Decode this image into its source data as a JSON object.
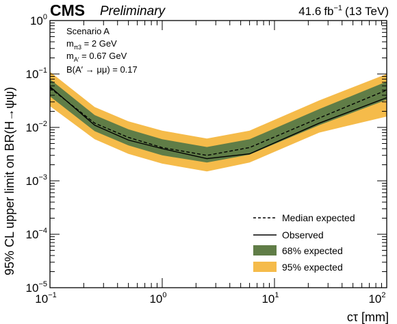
{
  "header": {
    "experiment": "CMS",
    "status": "Preliminary",
    "lumi_value": "41.6",
    "lumi_unit": "fb",
    "lumi_exp": "−1",
    "energy": "(13 TeV)"
  },
  "annotations": {
    "scenario": "Scenario A",
    "mass_label": "m",
    "mass_sub": "π3",
    "mass_value": " = 2 GeV",
    "aprime_label": "m",
    "aprime_sub": "A′",
    "aprime_value": " = 0.67 GeV",
    "br_text": "B(A′ → μμ) = 0.17"
  },
  "colors": {
    "band68": "#607d47",
    "band95": "#f5bb4a",
    "line": "#000000"
  },
  "chart_data": {
    "type": "line",
    "xlabel": "cτ [mm]",
    "ylabel": "95% CL upper limit on BR(H→ψψ)",
    "xscale": "log",
    "yscale": "log",
    "xlim": [
      0.1,
      100
    ],
    "ylim": [
      1e-05,
      1
    ],
    "x_ticks": [
      {
        "base": "10",
        "exp": "−1",
        "value": 0.1
      },
      {
        "base": "10",
        "exp": "0",
        "value": 1
      },
      {
        "base": "10",
        "exp": "1",
        "value": 10
      },
      {
        "base": "10",
        "exp": "2",
        "value": 100
      }
    ],
    "y_ticks": [
      {
        "base": "10",
        "exp": "−5",
        "value": 1e-05
      },
      {
        "base": "10",
        "exp": "−4",
        "value": 0.0001
      },
      {
        "base": "10",
        "exp": "−3",
        "value": 0.001
      },
      {
        "base": "10",
        "exp": "−2",
        "value": 0.01
      },
      {
        "base": "10",
        "exp": "−1",
        "value": 0.1
      },
      {
        "base": "10",
        "exp": "0",
        "value": 1
      }
    ],
    "x": [
      0.1,
      0.25,
      0.5,
      1.0,
      2.5,
      6.0,
      25,
      100
    ],
    "series": [
      {
        "name": "Median expected",
        "style": "dashed",
        "values": [
          0.055,
          0.012,
          0.0065,
          0.0042,
          0.003,
          0.0042,
          0.015,
          0.05
        ]
      },
      {
        "name": "Observed",
        "style": "solid",
        "values": [
          0.058,
          0.011,
          0.0058,
          0.004,
          0.0026,
          0.0032,
          0.012,
          0.036
        ]
      },
      {
        "name": "68% expected",
        "style": "band",
        "low": [
          0.038,
          0.0085,
          0.0046,
          0.003,
          0.0022,
          0.0031,
          0.011,
          0.033
        ],
        "high": [
          0.08,
          0.017,
          0.0092,
          0.006,
          0.0043,
          0.006,
          0.022,
          0.072
        ]
      },
      {
        "name": "95% expected",
        "style": "band",
        "low": [
          0.025,
          0.006,
          0.0032,
          0.0021,
          0.0015,
          0.0022,
          0.008,
          0.016
        ],
        "high": [
          0.11,
          0.024,
          0.013,
          0.0087,
          0.0062,
          0.0087,
          0.032,
          0.1
        ]
      }
    ],
    "legend": {
      "position": "bottom-right",
      "entries": [
        "Median expected",
        "Observed",
        "68% expected",
        "95% expected"
      ]
    },
    "grid": false
  }
}
